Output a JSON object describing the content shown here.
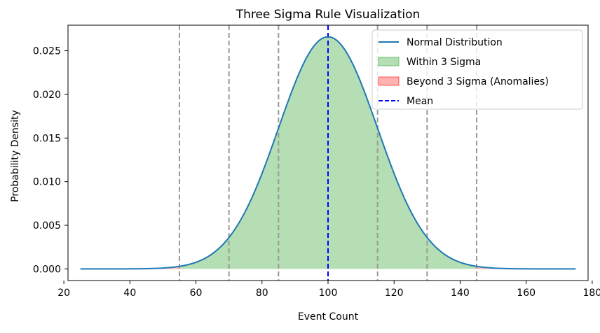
{
  "chart_data": {
    "type": "line",
    "title": "Three Sigma Rule Visualization",
    "xlabel": "Event Count",
    "ylabel": "Probability Density",
    "xlim": [
      21.25,
      178.75
    ],
    "ylim": [
      -0.00133,
      0.02793
    ],
    "xticks": [
      20,
      40,
      60,
      80,
      100,
      120,
      140,
      160,
      180
    ],
    "xtick_labels": [
      "20",
      "40",
      "60",
      "80",
      "100",
      "120",
      "140",
      "160",
      "180"
    ],
    "yticks": [
      0.0,
      0.005,
      0.01,
      0.015,
      0.02,
      0.025
    ],
    "ytick_labels": [
      "0.000",
      "0.005",
      "0.010",
      "0.015",
      "0.020",
      "0.025"
    ],
    "distribution": {
      "mean": 100,
      "std": 15,
      "x_range": [
        25,
        175
      ]
    },
    "within_range": [
      55,
      145
    ],
    "sigma_lines": [
      55,
      70,
      85,
      115,
      130,
      145
    ],
    "mean_line": 100,
    "grid": false,
    "legend_position": "top-right",
    "series": [
      {
        "name": "Normal Distribution",
        "kind": "line",
        "color": "#1f77b4"
      },
      {
        "name": "Within 3 Sigma",
        "kind": "fill",
        "color": "#2ca02c",
        "opacity": 0.35
      },
      {
        "name": "Beyond 3 Sigma (Anomalies)",
        "kind": "fill",
        "color": "#ff0000",
        "opacity": 0.3
      },
      {
        "name": "Mean",
        "kind": "dashed-line",
        "color": "#0000ff"
      }
    ],
    "colors": {
      "sigma_line": "#999999",
      "axes": "#000000"
    }
  }
}
